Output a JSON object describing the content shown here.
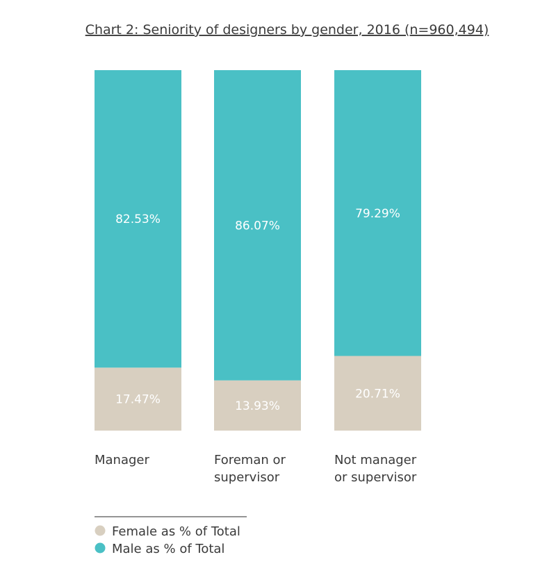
{
  "chart_data": {
    "type": "bar",
    "stacked": true,
    "title": "Chart 2: Seniority of designers by gender, 2016 (n=960,494)",
    "categories": [
      [
        "Manager"
      ],
      [
        "Foreman or",
        "supervisor"
      ],
      [
        "Not manager",
        "or supervisor"
      ]
    ],
    "series": [
      {
        "name": "Female as % of Total",
        "values": [
          17.47,
          13.93,
          20.71
        ],
        "labels": [
          "17.47%",
          "13.93%",
          "20.71%"
        ],
        "color": "#d8cfc0"
      },
      {
        "name": "Male as % of Total",
        "values": [
          82.53,
          86.07,
          79.29
        ],
        "labels": [
          "82.53%",
          "86.07%",
          "79.29%"
        ],
        "color": "#4ac0c5"
      }
    ],
    "ylim": [
      0,
      100
    ],
    "grid": false,
    "legend_position": "bottom-left"
  }
}
